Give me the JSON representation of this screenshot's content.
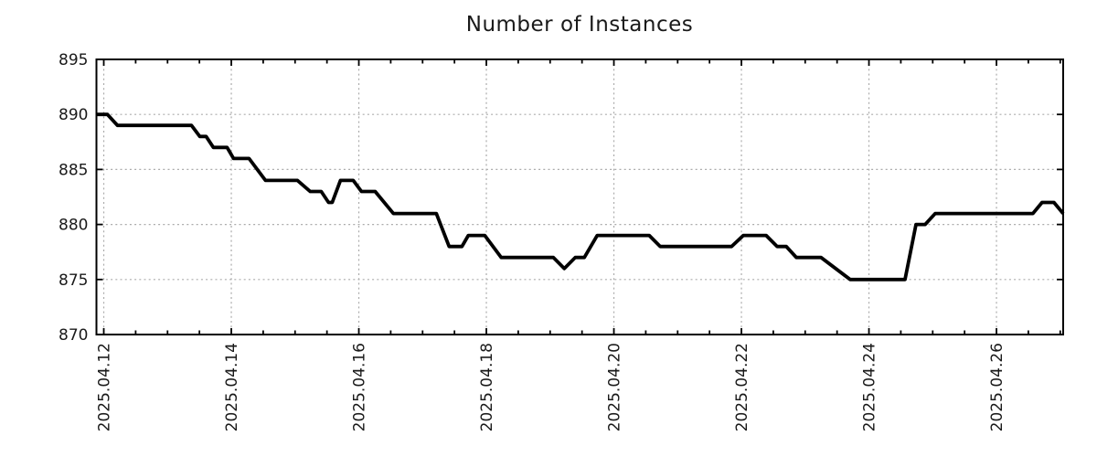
{
  "figure": {
    "background": "#ffffff",
    "border_color": "#000000",
    "text_color": "#1a1a1a"
  },
  "chart_data": {
    "type": "line",
    "title": "Number of Instances",
    "x_axis": {
      "range_days": [
        -0.115,
        15.046
      ],
      "major_ticks": [
        {
          "t": 0,
          "label": "2025.04.12"
        },
        {
          "t": 2,
          "label": "2025.04.14"
        },
        {
          "t": 4,
          "label": "2025.04.16"
        },
        {
          "t": 6,
          "label": "2025.04.18"
        },
        {
          "t": 8,
          "label": "2025.04.20"
        },
        {
          "t": 10,
          "label": "2025.04.22"
        },
        {
          "t": 12,
          "label": "2025.04.24"
        },
        {
          "t": 14,
          "label": "2025.04.26"
        }
      ],
      "minor_tick_step_days": 0.5
    },
    "y_axis": {
      "range": [
        870,
        895
      ],
      "ticks": [
        870,
        875,
        880,
        885,
        890,
        895
      ]
    },
    "grid": {
      "enabled": true,
      "style": "dashed",
      "color": "#ababab"
    },
    "legend": null,
    "series": [
      {
        "name": "instances",
        "color": "#000000",
        "line_width": 3.8,
        "points": [
          [
            -0.115,
            890
          ],
          [
            0.057,
            890
          ],
          [
            0.215,
            889
          ],
          [
            1.376,
            889
          ],
          [
            1.505,
            888
          ],
          [
            1.605,
            888
          ],
          [
            1.719,
            887
          ],
          [
            1.934,
            887
          ],
          [
            2.035,
            886
          ],
          [
            2.278,
            886
          ],
          [
            2.536,
            884
          ],
          [
            3.038,
            884
          ],
          [
            3.238,
            883
          ],
          [
            3.41,
            883
          ],
          [
            3.525,
            882
          ],
          [
            3.582,
            882
          ],
          [
            3.711,
            884
          ],
          [
            3.912,
            884
          ],
          [
            4.041,
            883
          ],
          [
            4.256,
            883
          ],
          [
            4.542,
            881
          ],
          [
            5.216,
            881
          ],
          [
            5.416,
            878
          ],
          [
            5.617,
            878
          ],
          [
            5.717,
            879
          ],
          [
            5.975,
            879
          ],
          [
            6.233,
            877
          ],
          [
            7.05,
            877
          ],
          [
            7.222,
            876
          ],
          [
            7.394,
            877
          ],
          [
            7.537,
            877
          ],
          [
            7.738,
            879
          ],
          [
            8.554,
            879
          ],
          [
            8.726,
            878
          ],
          [
            9.844,
            878
          ],
          [
            10.03,
            879
          ],
          [
            10.388,
            879
          ],
          [
            10.56,
            878
          ],
          [
            10.703,
            878
          ],
          [
            10.861,
            877
          ],
          [
            11.248,
            877
          ],
          [
            11.706,
            875
          ],
          [
            12.566,
            875
          ],
          [
            12.738,
            880
          ],
          [
            12.881,
            880
          ],
          [
            13.039,
            881
          ],
          [
            14.572,
            881
          ],
          [
            14.715,
            882
          ],
          [
            14.901,
            882
          ],
          [
            15.046,
            881
          ]
        ]
      }
    ]
  }
}
